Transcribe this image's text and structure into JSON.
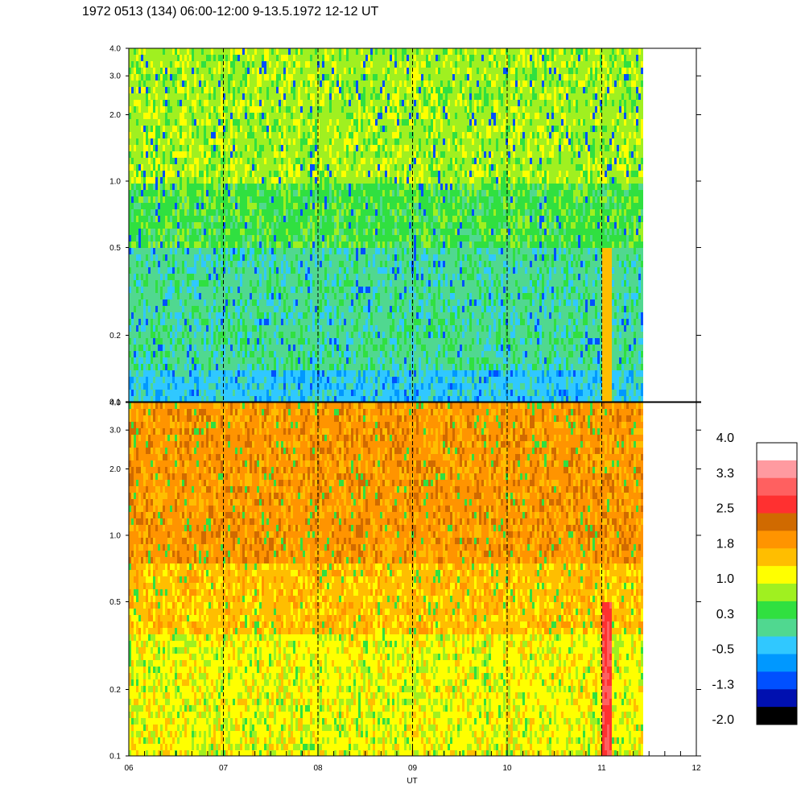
{
  "title": "1972 0513 (134) 06:00-12:00 9-13.5.1972  12-12 UT",
  "chart_data": [
    {
      "type": "heatmap",
      "panel": "top",
      "ylabels": [
        "0.1",
        "0.2",
        "0.5",
        "1.0",
        "2.0",
        "3.0",
        "4.0"
      ],
      "yticks": [
        0.1,
        0.2,
        0.5,
        1.0,
        2.0,
        3.0,
        4.0
      ],
      "ylim": [
        0.1,
        4.0
      ],
      "yscale": "log",
      "dominant_color_low": "#30d0ff",
      "dominant_color_mid": "#40e040",
      "dominant_color_high": "#80f060"
    },
    {
      "type": "heatmap",
      "panel": "bottom",
      "ylabels": [
        "0.1",
        "0.2",
        "0.5",
        "1.0",
        "2.0",
        "3.0",
        "4.0"
      ],
      "yticks": [
        0.1,
        0.2,
        0.5,
        1.0,
        2.0,
        3.0,
        4.0
      ],
      "ylim": [
        0.1,
        4.0
      ],
      "yscale": "log",
      "dominant_color_low": "#ffff20",
      "dominant_color_mid": "#ffc000",
      "dominant_color_high": "#ff9000"
    }
  ],
  "xaxis": {
    "title": "UT",
    "labels": [
      "06",
      "07",
      "08",
      "09",
      "10",
      "11",
      "12"
    ],
    "xlim": [
      6,
      12
    ],
    "dashed_lines": [
      7,
      8,
      9,
      10,
      11
    ],
    "data_end": 11.42
  },
  "colorbar": {
    "labels": [
      "4.0",
      "3.3",
      "2.5",
      "1.8",
      "1.0",
      "0.3",
      "-0.5",
      "-1.3",
      "-2.0"
    ],
    "colors": [
      "#ffffff",
      "#ff9aa0",
      "#ff6060",
      "#ff3030",
      "#d06a00",
      "#ff9400",
      "#ffbe00",
      "#ffff00",
      "#a0f020",
      "#30e040",
      "#50d890",
      "#30c8ff",
      "#0098ff",
      "#0050ff",
      "#0010b0",
      "#000000"
    ]
  }
}
